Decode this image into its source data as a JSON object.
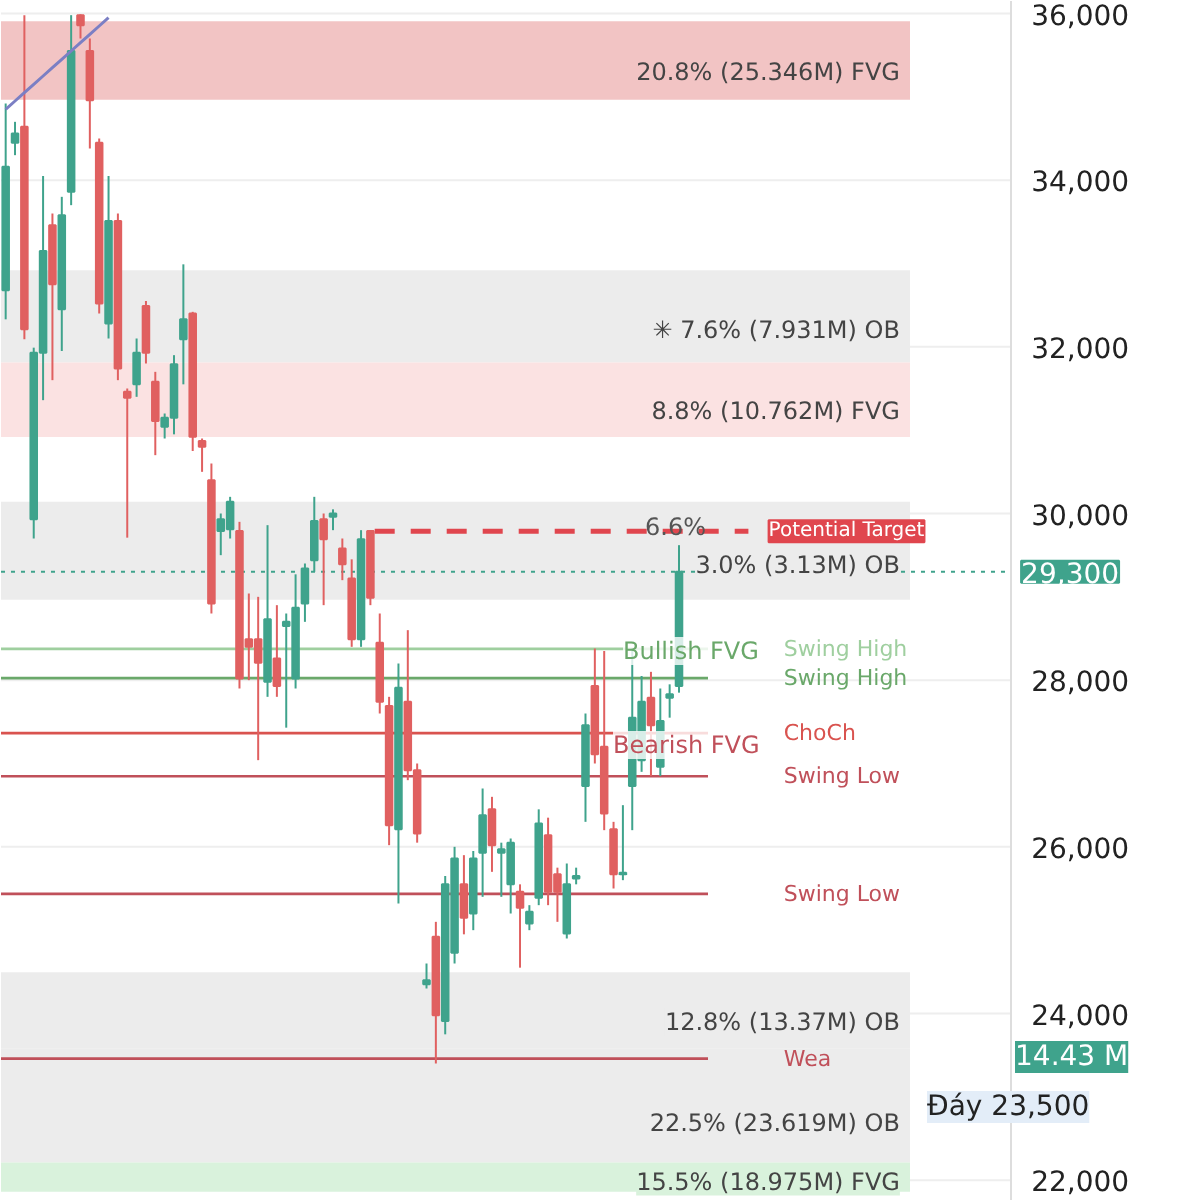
{
  "chart_data": {
    "type": "candlestick",
    "categories": [
      null,
      null,
      null,
      null,
      null,
      null,
      null,
      null,
      null,
      null,
      null,
      null,
      null,
      null,
      null,
      null,
      null,
      null,
      null,
      null,
      null,
      null,
      null,
      null,
      null,
      null,
      null,
      null,
      null,
      null,
      null,
      null,
      null,
      null,
      null,
      null,
      null,
      null,
      null,
      null,
      null,
      null,
      null,
      null,
      null,
      null,
      null,
      null,
      null,
      null,
      null,
      null,
      null,
      null,
      null,
      null,
      null,
      null,
      null,
      null,
      null,
      null,
      null,
      null,
      null,
      null,
      null,
      null,
      null,
      null,
      null,
      null,
      null,
      null,
      null,
      null,
      null,
      null,
      null,
      null,
      null,
      null,
      null,
      null,
      null,
      null,
      null,
      null,
      null,
      null,
      null,
      null,
      null,
      null,
      null,
      null,
      null,
      null,
      null,
      null,
      null,
      null,
      null,
      null,
      null,
      null,
      null,
      null
    ],
    "ohlc": [
      [
        32680,
        34920,
        32330,
        34160
      ],
      [
        34450,
        34700,
        34300,
        34560
      ],
      [
        34640,
        35980,
        32090,
        32210
      ],
      [
        29930,
        31990,
        29700,
        31930
      ],
      [
        31930,
        34050,
        31360,
        33150
      ],
      [
        33460,
        33600,
        31600,
        32750
      ],
      [
        32450,
        33800,
        31950,
        33580
      ],
      [
        33860,
        35980,
        33700,
        35550
      ],
      [
        35980,
        35990,
        35700,
        35860
      ],
      [
        35550,
        35700,
        34380,
        34960
      ],
      [
        34450,
        34500,
        32400,
        32520
      ],
      [
        32280,
        34050,
        32100,
        33510
      ],
      [
        33510,
        33600,
        31600,
        31740
      ],
      [
        31460,
        31500,
        29710,
        31390
      ],
      [
        31550,
        32100,
        31400,
        31930
      ],
      [
        32490,
        32550,
        31800,
        31930
      ],
      [
        31580,
        31700,
        30700,
        31110
      ],
      [
        31040,
        31200,
        30900,
        31150
      ],
      [
        31150,
        31900,
        30950,
        31790
      ],
      [
        32090,
        32990,
        31550,
        32330
      ],
      [
        32400,
        32420,
        30750,
        30920
      ],
      [
        30870,
        30900,
        30500,
        30800
      ],
      [
        30400,
        30600,
        28800,
        28920
      ],
      [
        29790,
        30000,
        29500,
        29930
      ],
      [
        29810,
        30200,
        29700,
        30140
      ],
      [
        29790,
        29900,
        27900,
        28020
      ],
      [
        28490,
        29040,
        28000,
        28400
      ],
      [
        28490,
        29000,
        27040,
        28210
      ],
      [
        27980,
        29860,
        27800,
        28730
      ],
      [
        28260,
        28900,
        27800,
        27930
      ],
      [
        28650,
        28800,
        27430,
        28700
      ],
      [
        28020,
        29270,
        27900,
        28870
      ],
      [
        28920,
        29400,
        28700,
        29340
      ],
      [
        29440,
        30200,
        29300,
        29910
      ],
      [
        29930,
        30000,
        28900,
        29690
      ],
      [
        29960,
        30050,
        29800,
        30000
      ],
      [
        29580,
        29700,
        29200,
        29390
      ],
      [
        29220,
        29450,
        28400,
        28490
      ],
      [
        28490,
        29800,
        28400,
        29690
      ],
      [
        29790,
        29800,
        28900,
        28990
      ],
      [
        28450,
        28800,
        27600,
        27740
      ],
      [
        27690,
        27800,
        26020,
        26260
      ],
      [
        26210,
        28200,
        25320,
        27910
      ],
      [
        27740,
        28600,
        26800,
        26920
      ],
      [
        26920,
        27000,
        26050,
        26160
      ],
      [
        24350,
        24600,
        24300,
        24400
      ],
      [
        24920,
        25100,
        23400,
        23980
      ],
      [
        23910,
        25650,
        23750,
        25550
      ],
      [
        24730,
        26000,
        24600,
        25860
      ],
      [
        25550,
        25900,
        24950,
        25150
      ],
      [
        25200,
        25950,
        25000,
        25860
      ],
      [
        25930,
        26700,
        25400,
        26380
      ],
      [
        26450,
        26600,
        25700,
        26020
      ],
      [
        25930,
        26050,
        25400,
        25970
      ],
      [
        25550,
        26100,
        25200,
        26050
      ],
      [
        25460,
        25550,
        24550,
        25270
      ],
      [
        25080,
        25300,
        25000,
        25220
      ],
      [
        25390,
        26450,
        25300,
        26280
      ],
      [
        26140,
        26350,
        25300,
        25460
      ],
      [
        25670,
        25750,
        25100,
        25460
      ],
      [
        24960,
        25800,
        24900,
        25550
      ],
      [
        25620,
        25750,
        25550,
        25650
      ],
      [
        26730,
        27600,
        26300,
        27460
      ],
      [
        27930,
        28380,
        27000,
        27110
      ],
      [
        27200,
        28350,
        26200,
        26400
      ],
      [
        26210,
        26300,
        25500,
        25670
      ],
      [
        25670,
        26500,
        25600,
        25690
      ],
      [
        26730,
        28380,
        26200,
        27550
      ],
      [
        27040,
        28050,
        26900,
        27740
      ],
      [
        27790,
        28100,
        26850,
        27460
      ],
      [
        26960,
        27900,
        26850,
        27510
      ],
      [
        27790,
        27950,
        27550,
        27830
      ],
      [
        27930,
        29620,
        27850,
        29300
      ],
      null,
      null,
      null,
      null,
      null,
      null,
      null,
      null,
      null,
      null,
      null,
      null,
      null,
      null,
      null,
      null,
      null,
      null,
      null,
      null,
      null,
      null,
      null,
      null,
      null,
      null,
      null,
      null,
      null,
      null,
      null,
      null,
      null,
      null,
      null
    ],
    "series": [
      {
        "type": "line",
        "values": [
          34850,
          34950,
          35050,
          35150,
          35250,
          35350,
          35450,
          35550,
          35650,
          35750,
          35850,
          35950,
          null,
          null,
          null,
          null,
          null,
          null,
          null,
          null,
          null,
          null,
          null,
          null,
          null,
          null,
          null,
          null,
          null,
          null,
          null,
          null,
          null,
          null,
          null,
          null,
          null,
          null,
          null,
          null,
          null,
          null,
          null,
          null,
          null,
          null,
          null,
          null,
          null,
          null,
          null,
          null,
          null,
          null,
          null,
          null,
          null,
          null,
          null,
          null,
          null,
          null,
          null,
          null,
          null,
          null,
          null,
          null,
          null,
          null,
          null,
          null,
          null,
          null,
          null,
          null,
          null,
          null,
          null,
          null,
          null,
          null,
          null,
          null,
          null,
          null,
          null,
          null,
          null,
          null,
          null,
          null,
          null,
          null,
          null,
          null,
          null,
          null,
          null,
          null,
          null,
          null,
          null,
          null,
          null,
          null,
          null,
          null
        ],
        "color": "#7b7fc4"
      }
    ],
    "colors": [
      "#3fa38c",
      "#3fa38c",
      "#e06060",
      "#3fa38c",
      "#3fa38c",
      "#e06060",
      "#3fa38c",
      "#3fa38c",
      "#e06060",
      "#e06060",
      "#e06060",
      "#3fa38c",
      "#e06060",
      "#e06060",
      "#3fa38c",
      "#e06060",
      "#e06060",
      "#3fa38c",
      "#3fa38c",
      "#3fa38c",
      "#e06060",
      "#e06060",
      "#e06060",
      "#3fa38c",
      "#3fa38c",
      "#e06060",
      "#e06060",
      "#e06060",
      "#3fa38c",
      "#e06060",
      "#3fa38c",
      "#3fa38c",
      "#3fa38c",
      "#3fa38c",
      "#e06060",
      "#3fa38c",
      "#e06060",
      "#e06060",
      "#3fa38c",
      "#e06060",
      "#e06060",
      "#e06060",
      "#3fa38c",
      "#e06060",
      "#e06060",
      "#3fa38c",
      "#e06060",
      "#3fa38c",
      "#3fa38c",
      "#e06060",
      "#3fa38c",
      "#3fa38c",
      "#e06060",
      "#3fa38c",
      "#3fa38c",
      "#e06060",
      "#3fa38c",
      "#3fa38c",
      "#e06060",
      "#e06060",
      "#3fa38c",
      "#3fa38c",
      "#3fa38c",
      "#e06060",
      "#e06060",
      "#e06060",
      "#3fa38c",
      "#3fa38c",
      "#3fa38c",
      "#e06060",
      "#3fa38c",
      "#3fa38c",
      "#3fa38c",
      null,
      null,
      null,
      null,
      null,
      null,
      null,
      null,
      null,
      null,
      null,
      null,
      null,
      null,
      null,
      null,
      null,
      null,
      null,
      null,
      null,
      null,
      null,
      null,
      null,
      null,
      null,
      null,
      null,
      null,
      null,
      null,
      null,
      null,
      null
    ],
    "ylim": [
      21750,
      36150
    ],
    "yticks": [
      {
        "value": 22000,
        "label": "22,000"
      },
      {
        "value": 24000,
        "label": "24,000"
      },
      {
        "value": 26000,
        "label": "26,000"
      },
      {
        "value": 28000,
        "label": "28,000"
      },
      {
        "value": 30000,
        "label": "30,000"
      },
      {
        "value": 32000,
        "label": "32,000"
      },
      {
        "value": 34000,
        "label": "34,000"
      },
      {
        "value": 36000,
        "label": "36,000"
      }
    ],
    "tick_labels": "y",
    "grid": "y",
    "bands": [
      {
        "axis": "y",
        "from": 34965,
        "to": 35906,
        "label": "20.8% (25.346M) FVG",
        "color": "#f2c4c4"
      },
      {
        "axis": "y",
        "from": 31812,
        "to": 32918,
        "label": "✳ 7.6% (7.931M) OB",
        "color": "#ececec"
      },
      {
        "axis": "y",
        "from": 30918,
        "to": 31812,
        "label": "8.8% (10.762M) FVG",
        "color": "#fbe2e2"
      },
      {
        "axis": "y",
        "from": 28965,
        "to": 30141,
        "label": "3.0% (3.13M) OB",
        "color": "#ececec"
      },
      {
        "axis": "y",
        "from": 23576,
        "to": 24494,
        "label": "12.8% (13.37M) OB",
        "color": "#ececec"
      },
      {
        "axis": "y",
        "from": 22212,
        "to": 23576,
        "label": "22.5% (23.619M) OB",
        "color": "#ececec"
      },
      {
        "axis": "y",
        "from": 21860,
        "to": 22212,
        "label": "15.5% (18.975M) FVG",
        "color": "#d9f2dc"
      }
    ],
    "ref_lines": [
      {
        "axis": "y",
        "value": 29788,
        "label": "Potential Target",
        "color": "#e0464e",
        "line_style": "dashed"
      },
      {
        "axis": "y",
        "value": 29300,
        "label": "29,300",
        "color": "#3fa38c",
        "line_style": "dotted"
      },
      {
        "axis": "y",
        "value": 28376,
        "label": "Swing High",
        "color": "#9fcf9f",
        "line_style": "solid"
      },
      {
        "axis": "y",
        "value": 28024,
        "label": "Swing High",
        "color": "#6aa86a",
        "line_style": "solid"
      },
      {
        "axis": "y",
        "value": 27365,
        "label": "ChoCh",
        "color": "#d9534f",
        "line_style": "solid"
      },
      {
        "axis": "y",
        "value": 26847,
        "label": "Swing Low",
        "color": "#c0505a",
        "line_style": "solid"
      },
      {
        "axis": "y",
        "value": 25435,
        "label": "Swing Low",
        "color": "#c0505a",
        "line_style": "solid"
      },
      {
        "axis": "y",
        "value": 23459,
        "label": "Wea",
        "color": "#c0505a",
        "line_style": "solid"
      }
    ],
    "annotations": [
      "6.6%",
      "Bullish FVG",
      "Bearish FVG",
      "14.43 M",
      "Đáy 23,500"
    ]
  }
}
